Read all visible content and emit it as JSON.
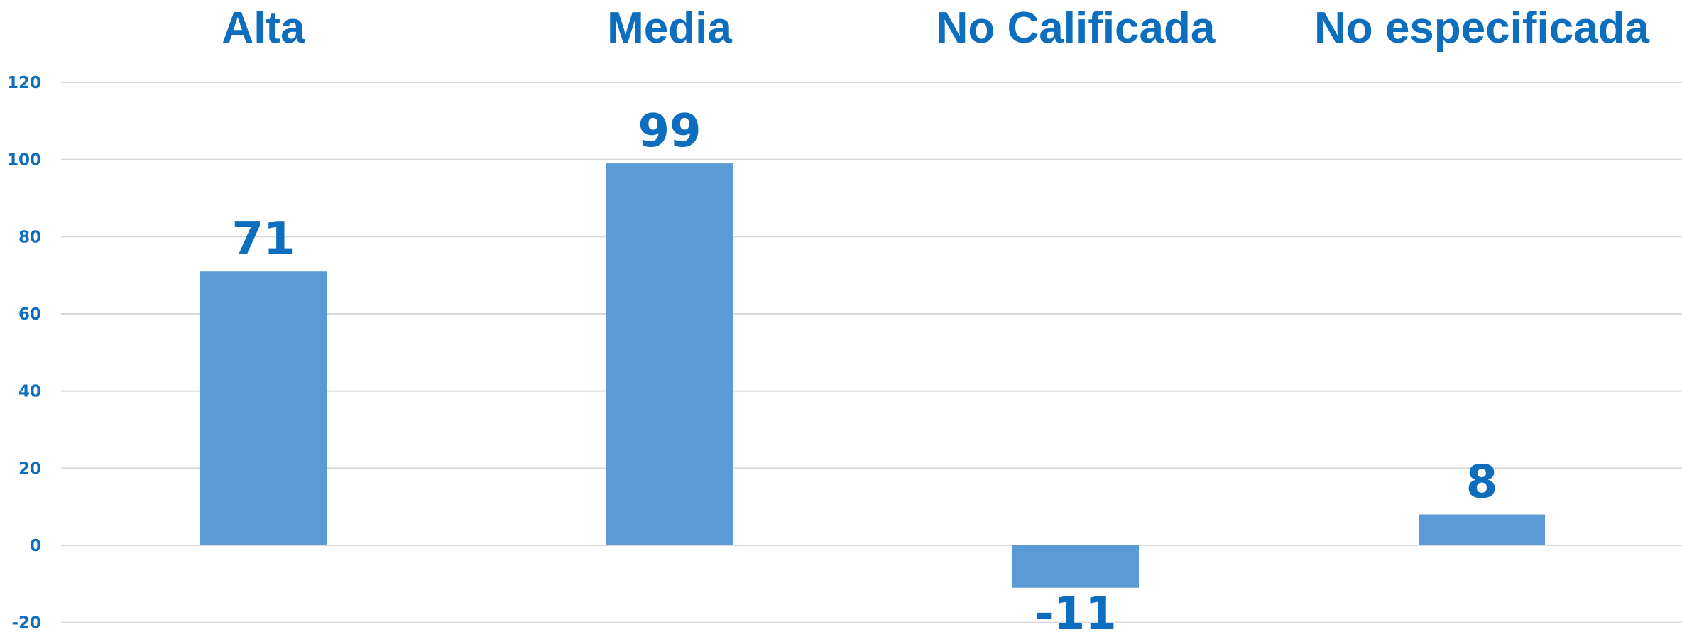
{
  "chart_data": {
    "type": "bar",
    "categories": [
      "Alta",
      "Media",
      "No Calificada",
      "No especificada"
    ],
    "values": [
      71,
      99,
      -11,
      8
    ],
    "data_labels": [
      "71",
      "99",
      "-11",
      "8"
    ],
    "yticks": [
      "120",
      "100",
      "80",
      "60",
      "40",
      "20",
      "0",
      "-20"
    ],
    "ytick_values": [
      120,
      100,
      80,
      60,
      40,
      20,
      0,
      -20
    ],
    "ylim": [
      -20,
      120
    ],
    "grid": true,
    "category_label_position": "top",
    "colors": {
      "bar": "#5B9BD5",
      "text": "#0C6EBD",
      "grid": "#D9D9D9"
    }
  }
}
